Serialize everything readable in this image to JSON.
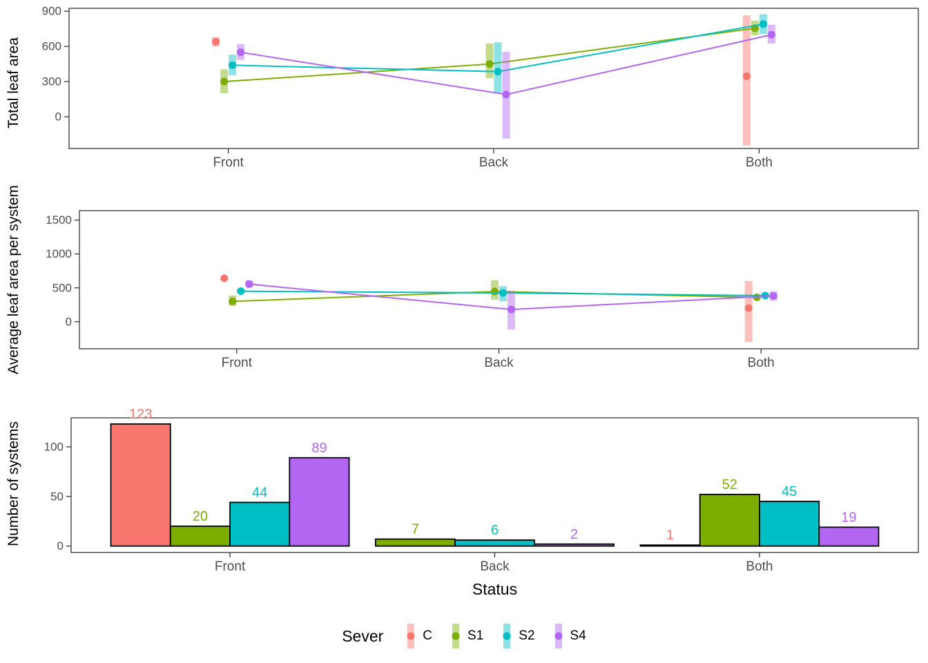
{
  "figure": {
    "axis_text_color": "#4d4d4d",
    "axis_line_color": "#333333",
    "background": "#ffffff"
  },
  "legend": {
    "title": "Sever",
    "entries": [
      {
        "label": "C",
        "color": "#F8766D"
      },
      {
        "label": "S1",
        "color": "#7CAE00"
      },
      {
        "label": "S2",
        "color": "#00BFC4"
      },
      {
        "label": "S4",
        "color": "#B266F2"
      }
    ]
  },
  "chart_data": [
    {
      "type": "pointrange-line",
      "ylabel": "Total leaf area",
      "categories": [
        "Front",
        "Back",
        "Both"
      ],
      "yticks": [
        0,
        300,
        600,
        900
      ],
      "ylim": [
        -270,
        925
      ],
      "legend_position": "bottom",
      "grid": false,
      "series": [
        {
          "name": "C",
          "color": "#F8766D",
          "line": false,
          "points": [
            {
              "x": "Front",
              "y": 640,
              "lo": 600,
              "hi": 680
            },
            {
              "x": "Both",
              "y": 345,
              "lo": -245,
              "hi": 865
            }
          ]
        },
        {
          "name": "S1",
          "color": "#7CAE00",
          "line": true,
          "points": [
            {
              "x": "Front",
              "y": 300,
              "lo": 200,
              "hi": 405
            },
            {
              "x": "Back",
              "y": 450,
              "lo": 330,
              "hi": 625
            },
            {
              "x": "Both",
              "y": 755,
              "lo": 695,
              "hi": 820
            }
          ]
        },
        {
          "name": "S2",
          "color": "#00BFC4",
          "line": true,
          "points": [
            {
              "x": "Front",
              "y": 440,
              "lo": 355,
              "hi": 530
            },
            {
              "x": "Back",
              "y": 385,
              "lo": 205,
              "hi": 635
            },
            {
              "x": "Both",
              "y": 790,
              "lo": 705,
              "hi": 875
            }
          ]
        },
        {
          "name": "S4",
          "color": "#B266F2",
          "line": true,
          "points": [
            {
              "x": "Front",
              "y": 550,
              "lo": 485,
              "hi": 620
            },
            {
              "x": "Back",
              "y": 190,
              "lo": -185,
              "hi": 555
            },
            {
              "x": "Both",
              "y": 700,
              "lo": 625,
              "hi": 785
            }
          ]
        }
      ]
    },
    {
      "type": "pointrange-line",
      "ylabel": "Average leaf area per system",
      "categories": [
        "Front",
        "Back",
        "Both"
      ],
      "yticks": [
        0,
        500,
        1000,
        1500
      ],
      "ylim": [
        -400,
        1640
      ],
      "grid": false,
      "series": [
        {
          "name": "C",
          "color": "#F8766D",
          "line": false,
          "points": [
            {
              "x": "Front",
              "y": 640,
              "lo": 615,
              "hi": 665
            },
            {
              "x": "Both",
              "y": 200,
              "lo": -300,
              "hi": 600
            }
          ]
        },
        {
          "name": "S1",
          "color": "#7CAE00",
          "line": true,
          "points": [
            {
              "x": "Front",
              "y": 300,
              "lo": 235,
              "hi": 385
            },
            {
              "x": "Back",
              "y": 445,
              "lo": 325,
              "hi": 610
            },
            {
              "x": "Both",
              "y": 360,
              "lo": 330,
              "hi": 395
            }
          ]
        },
        {
          "name": "S2",
          "color": "#00BFC4",
          "line": true,
          "points": [
            {
              "x": "Front",
              "y": 450,
              "lo": 420,
              "hi": 480
            },
            {
              "x": "Back",
              "y": 425,
              "lo": 300,
              "hi": 525
            },
            {
              "x": "Both",
              "y": 385,
              "lo": 345,
              "hi": 430
            }
          ]
        },
        {
          "name": "S4",
          "color": "#B266F2",
          "line": true,
          "points": [
            {
              "x": "Front",
              "y": 555,
              "lo": 505,
              "hi": 610
            },
            {
              "x": "Back",
              "y": 180,
              "lo": -115,
              "hi": 455
            },
            {
              "x": "Both",
              "y": 380,
              "lo": 310,
              "hi": 450
            }
          ]
        }
      ]
    },
    {
      "type": "bar",
      "ylabel": "Number of systems",
      "xlabel": "Status",
      "categories": [
        "Front",
        "Back",
        "Both"
      ],
      "yticks": [
        0,
        50,
        100
      ],
      "ylim": [
        -6.5,
        129.2
      ],
      "grid": false,
      "bar_labels": true,
      "series": [
        {
          "name": "C",
          "color": "#F8766D",
          "values": [
            123,
            null,
            1
          ]
        },
        {
          "name": "S1",
          "color": "#7CAE00",
          "values": [
            20,
            7,
            52
          ]
        },
        {
          "name": "S2",
          "color": "#00BFC4",
          "values": [
            44,
            6,
            45
          ]
        },
        {
          "name": "S4",
          "color": "#B266F2",
          "values": [
            89,
            2,
            19
          ]
        }
      ]
    }
  ]
}
